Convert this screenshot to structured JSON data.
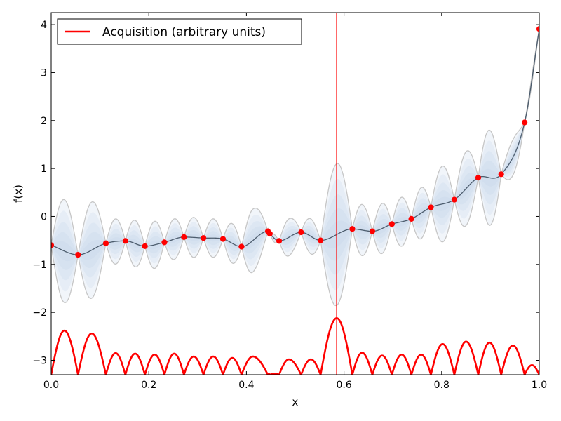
{
  "chart_data": {
    "type": "line",
    "title": "",
    "xlabel": "x",
    "ylabel": "f(x)",
    "xlim": [
      0.0,
      1.0
    ],
    "ylim": [
      -3.3,
      4.25
    ],
    "grid": false,
    "legend": {
      "placement": "top-left",
      "entries": [
        "Acquisition (arbitrary units)"
      ]
    },
    "colors": {
      "observations": "#ff0000",
      "mean": "#4d5d6e",
      "bounds": "#c6c6c6",
      "band": "#bfd3ea",
      "acquisition": "#ff0000",
      "selected_x": "#ff0000"
    },
    "x_ticks": [
      {
        "value": 0.0,
        "label": "0.0"
      },
      {
        "value": 0.2,
        "label": "0.2"
      },
      {
        "value": 0.4,
        "label": "0.4"
      },
      {
        "value": 0.6,
        "label": "0.6"
      },
      {
        "value": 0.8,
        "label": "0.8"
      },
      {
        "value": 1.0,
        "label": "1.0"
      }
    ],
    "y_ticks": [
      {
        "value": -3,
        "label": "−3"
      },
      {
        "value": -2,
        "label": "−2"
      },
      {
        "value": -1,
        "label": "−1"
      },
      {
        "value": 0,
        "label": "0"
      },
      {
        "value": 1,
        "label": "1"
      },
      {
        "value": 2,
        "label": "2"
      },
      {
        "value": 3,
        "label": "3"
      },
      {
        "value": 4,
        "label": "4"
      }
    ],
    "observations": [
      {
        "x": 0.0,
        "y": -0.6
      },
      {
        "x": 0.055,
        "y": -0.8
      },
      {
        "x": 0.112,
        "y": -0.56
      },
      {
        "x": 0.152,
        "y": -0.51
      },
      {
        "x": 0.192,
        "y": -0.62
      },
      {
        "x": 0.232,
        "y": -0.54
      },
      {
        "x": 0.272,
        "y": -0.43
      },
      {
        "x": 0.312,
        "y": -0.45
      },
      {
        "x": 0.352,
        "y": -0.47
      },
      {
        "x": 0.39,
        "y": -0.63
      },
      {
        "x": 0.444,
        "y": -0.31
      },
      {
        "x": 0.448,
        "y": -0.36
      },
      {
        "x": 0.467,
        "y": -0.51
      },
      {
        "x": 0.512,
        "y": -0.33
      },
      {
        "x": 0.552,
        "y": -0.5
      },
      {
        "x": 0.617,
        "y": -0.26
      },
      {
        "x": 0.658,
        "y": -0.31
      },
      {
        "x": 0.698,
        "y": -0.16
      },
      {
        "x": 0.738,
        "y": -0.05
      },
      {
        "x": 0.778,
        "y": 0.19
      },
      {
        "x": 0.826,
        "y": 0.35
      },
      {
        "x": 0.875,
        "y": 0.81
      },
      {
        "x": 0.922,
        "y": 0.88
      },
      {
        "x": 0.97,
        "y": 1.96
      },
      {
        "x": 1.0,
        "y": 3.91
      }
    ],
    "band_peaks": [
      {
        "x": 0.027,
        "y": 0.35
      },
      {
        "x": 0.083,
        "y": 0.3
      },
      {
        "x": 0.132,
        "y": -0.05
      },
      {
        "x": 0.172,
        "y": -0.08
      },
      {
        "x": 0.212,
        "y": -0.1
      },
      {
        "x": 0.252,
        "y": -0.05
      },
      {
        "x": 0.292,
        "y": -0.02
      },
      {
        "x": 0.332,
        "y": -0.05
      },
      {
        "x": 0.371,
        "y": -0.15
      },
      {
        "x": 0.413,
        "y": 0.15
      },
      {
        "x": 0.487,
        "y": -0.05
      },
      {
        "x": 0.532,
        "y": -0.05
      },
      {
        "x": 0.585,
        "y": 1.1
      },
      {
        "x": 0.637,
        "y": 0.25
      },
      {
        "x": 0.678,
        "y": 0.27
      },
      {
        "x": 0.718,
        "y": 0.4
      },
      {
        "x": 0.758,
        "y": 0.6
      },
      {
        "x": 0.802,
        "y": 1.05
      },
      {
        "x": 0.85,
        "y": 1.35
      },
      {
        "x": 0.898,
        "y": 1.8
      },
      {
        "x": 0.946,
        "y": 1.6
      }
    ],
    "selected_x": 0.585,
    "acquisition": {
      "name": "Acquisition (arbitrary units)",
      "baseline": -3.3,
      "peaks": [
        {
          "x": 0.027,
          "y": -2.38
        },
        {
          "x": 0.083,
          "y": -2.44
        },
        {
          "x": 0.132,
          "y": -2.85
        },
        {
          "x": 0.172,
          "y": -2.86
        },
        {
          "x": 0.212,
          "y": -2.88
        },
        {
          "x": 0.252,
          "y": -2.86
        },
        {
          "x": 0.292,
          "y": -2.92
        },
        {
          "x": 0.332,
          "y": -2.92
        },
        {
          "x": 0.371,
          "y": -2.95
        },
        {
          "x": 0.413,
          "y": -2.92
        },
        {
          "x": 0.487,
          "y": -2.98
        },
        {
          "x": 0.532,
          "y": -2.98
        },
        {
          "x": 0.585,
          "y": -2.12
        },
        {
          "x": 0.637,
          "y": -2.84
        },
        {
          "x": 0.678,
          "y": -2.9
        },
        {
          "x": 0.718,
          "y": -2.88
        },
        {
          "x": 0.758,
          "y": -2.88
        },
        {
          "x": 0.802,
          "y": -2.66
        },
        {
          "x": 0.85,
          "y": -2.61
        },
        {
          "x": 0.898,
          "y": -2.63
        },
        {
          "x": 0.946,
          "y": -2.69
        },
        {
          "x": 0.985,
          "y": -3.1
        }
      ]
    }
  }
}
